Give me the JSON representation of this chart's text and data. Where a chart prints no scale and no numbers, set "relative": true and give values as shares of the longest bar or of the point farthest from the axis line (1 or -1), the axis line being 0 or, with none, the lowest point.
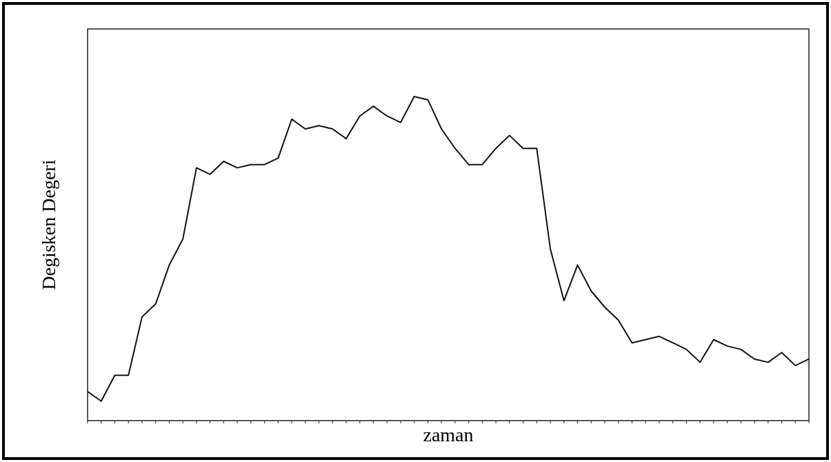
{
  "chart_data": {
    "type": "line",
    "xlabel": "zaman",
    "ylabel": "Degisken Degeri",
    "relative": true,
    "color": "#111111",
    "categories": [
      null,
      null,
      null,
      null,
      null,
      null,
      null,
      null,
      null,
      null,
      null,
      null,
      null,
      null,
      null,
      null,
      null,
      null,
      null,
      null,
      null,
      null,
      null,
      null,
      null,
      null,
      null,
      null,
      null,
      null,
      null,
      null,
      null,
      null,
      null,
      null,
      null,
      null,
      null,
      null,
      null,
      null,
      null,
      null,
      null,
      null,
      null,
      null,
      null,
      null,
      null,
      null,
      null,
      null
    ],
    "values": [
      0.09,
      0.06,
      0.14,
      0.14,
      0.32,
      0.36,
      0.48,
      0.56,
      0.78,
      0.76,
      0.8,
      0.78,
      0.79,
      0.79,
      0.81,
      0.93,
      0.9,
      0.91,
      0.9,
      0.87,
      0.94,
      0.97,
      0.94,
      0.92,
      1,
      0.99,
      0.9,
      0.84,
      0.79,
      0.79,
      0.84,
      0.88,
      0.84,
      0.84,
      0.53,
      0.37,
      0.48,
      0.4,
      0.35,
      0.31,
      0.24,
      0.25,
      0.26,
      0.24,
      0.22,
      0.18,
      0.25,
      0.23,
      0.22,
      0.19,
      0.18,
      0.21,
      0.17,
      0.19
    ]
  }
}
